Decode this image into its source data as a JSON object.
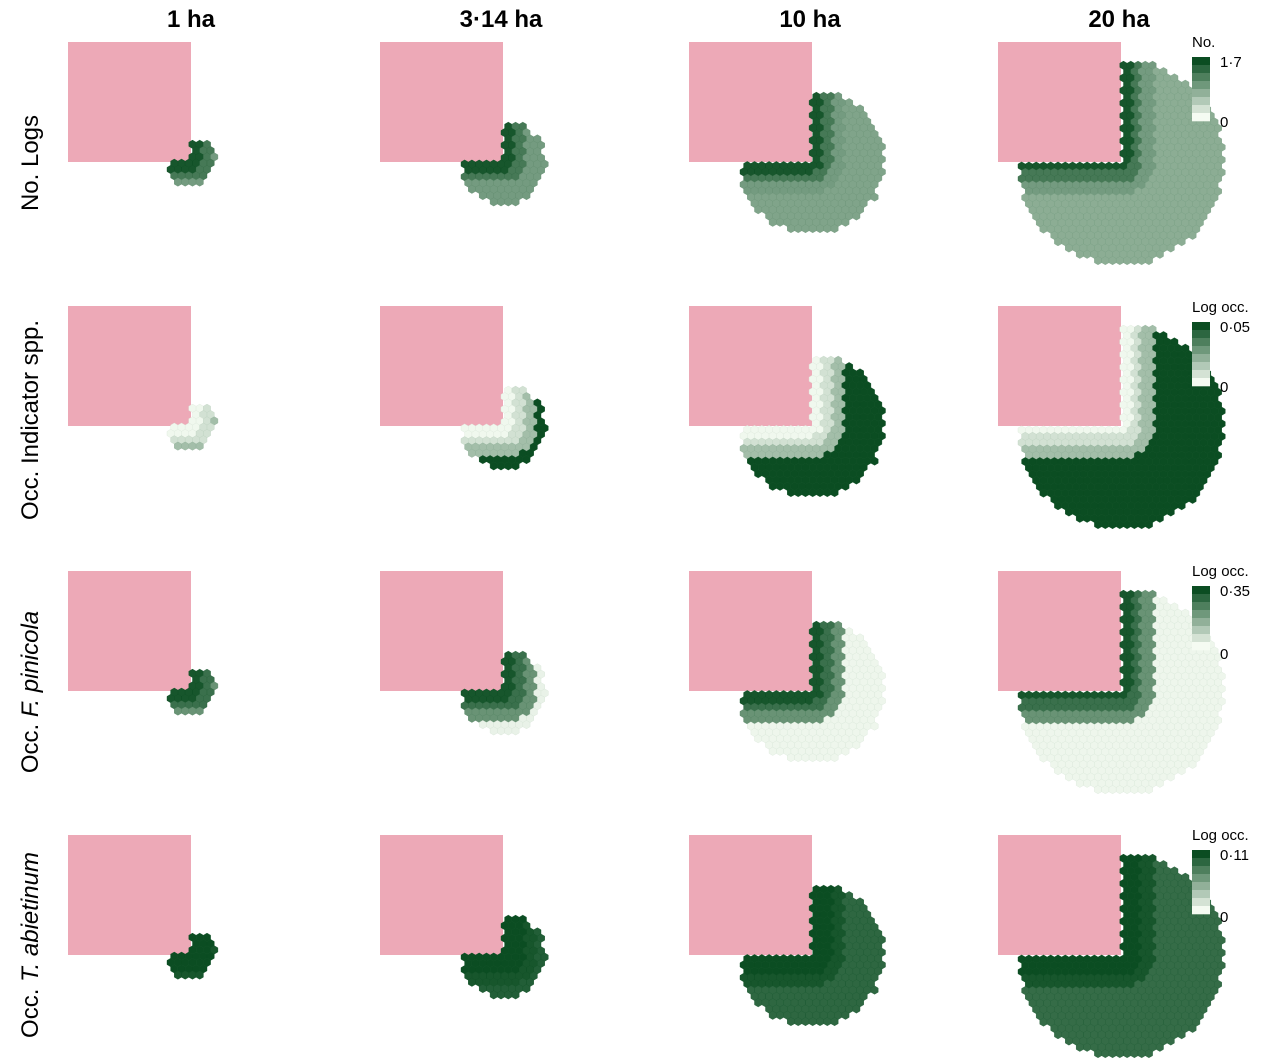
{
  "figure": {
    "columns": [
      "1 ha",
      "3·14 ha",
      "10 ha",
      "20 ha"
    ],
    "colors": {
      "retention_square": "#eda9b7",
      "scale_dark": "#0b4d22",
      "scale_light": "#f5fbf2"
    },
    "rows": [
      {
        "label_prefix": "No. Logs",
        "label_italic": "",
        "legend": {
          "title": "No.",
          "max": "1·7",
          "min": "0"
        },
        "panel_levels": [
          0.62,
          0.55,
          0.5,
          0.45
        ],
        "edge_levels": [
          0.95,
          0.75,
          0.55
        ]
      },
      {
        "label_prefix": "Occ. Indicator spp.",
        "label_italic": "",
        "legend": {
          "title": "Log occ.",
          "max": "0·05",
          "min": "0"
        },
        "panel_levels": [
          0.05,
          1.0,
          1.0,
          1.0
        ],
        "edge_levels": [
          0.02,
          0.15,
          0.35
        ]
      },
      {
        "label_prefix": "Occ. ",
        "label_italic": "F. pinicola",
        "legend": {
          "title": "Log occ.",
          "max": "0·35",
          "min": "0"
        },
        "panel_levels": [
          0.85,
          0.05,
          0.03,
          0.03
        ],
        "edge_levels": [
          0.95,
          0.8,
          0.6
        ]
      },
      {
        "label_prefix": "Occ. ",
        "label_italic": "T. abietinum",
        "legend": {
          "title": "Log occ.",
          "max": "0·11",
          "min": "0"
        },
        "panel_levels": [
          1.0,
          0.9,
          0.85,
          0.82
        ],
        "edge_levels": [
          1.0,
          1.0,
          0.95
        ]
      }
    ]
  }
}
